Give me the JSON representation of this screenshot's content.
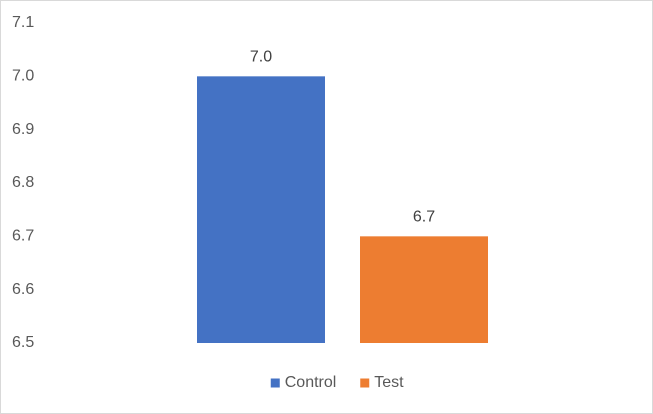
{
  "chart_data": {
    "type": "bar",
    "categories": [
      null
    ],
    "series": [
      {
        "name": "Control",
        "color": "#4472c4",
        "values": [
          7.0
        ],
        "value_labels": [
          "7.0"
        ]
      },
      {
        "name": "Test",
        "color": "#ed7d31",
        "values": [
          6.7
        ],
        "value_labels": [
          "6.7"
        ]
      }
    ],
    "ylim": [
      6.5,
      7.1
    ],
    "yticks": [
      6.5,
      6.6,
      6.7,
      6.8,
      6.9,
      {
        "value": 7,
        "label": "7.0"
      },
      7.1
    ],
    "grid": false,
    "legend": "bottom"
  }
}
